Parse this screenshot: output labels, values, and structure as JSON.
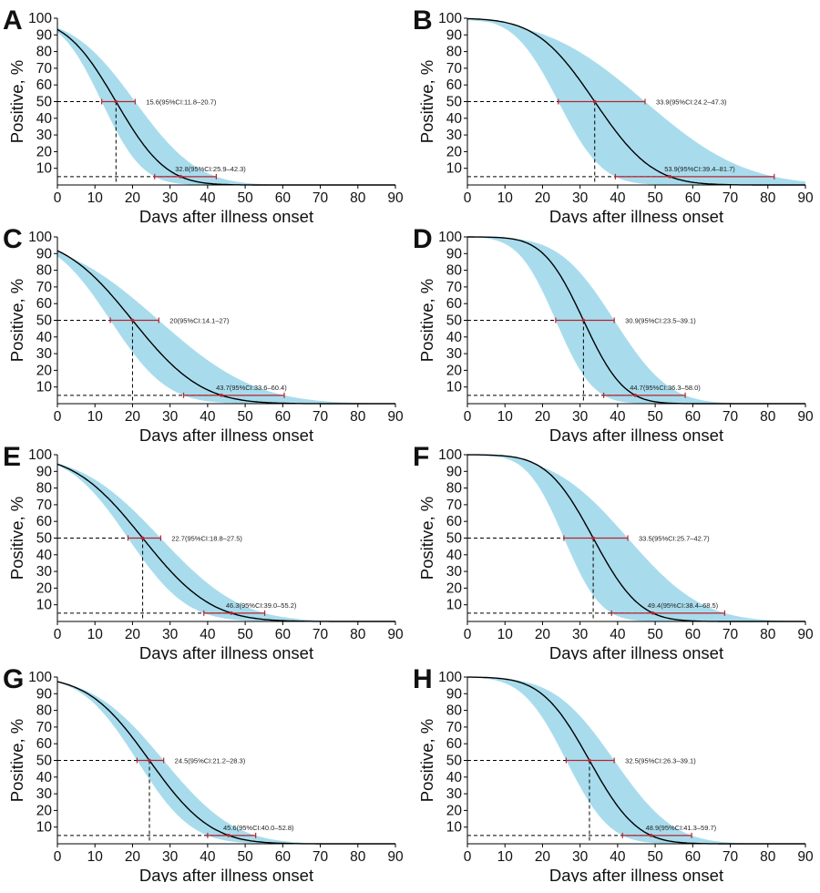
{
  "colors": {
    "band": "#a8dced",
    "curve": "#000000",
    "ci": "#b5252f",
    "guide": "#000000",
    "axis": "#000000"
  },
  "chart_data": [
    {
      "panel": "A",
      "type": "line",
      "xlabel": "Days after illness onset",
      "ylabel": "Positive, %",
      "xlim": [
        0,
        90
      ],
      "ylim": [
        0,
        100
      ],
      "xticks": [
        "0",
        "10",
        "20",
        "30",
        "40",
        "50",
        "60",
        "70",
        "80",
        "90"
      ],
      "yticks": [
        "10",
        "20",
        "30",
        "40",
        "50",
        "60",
        "70",
        "80",
        "90",
        "100"
      ],
      "median": {
        "x": 15.6,
        "lo": 11.8,
        "hi": 20.7,
        "label": "15.6(95%CI:11.8–20.7)"
      },
      "p95": {
        "x": 32.8,
        "lo": 25.9,
        "hi": 42.3,
        "label": "32.8(95%CI:25.9–42.3)"
      }
    },
    {
      "panel": "B",
      "type": "line",
      "xlabel": "Days after illness onset",
      "ylabel": "Positive, %",
      "xlim": [
        0,
        90
      ],
      "ylim": [
        0,
        100
      ],
      "xticks": [
        "0",
        "10",
        "20",
        "30",
        "40",
        "50",
        "60",
        "70",
        "80",
        "90"
      ],
      "yticks": [
        "10",
        "20",
        "30",
        "40",
        "50",
        "60",
        "70",
        "80",
        "90",
        "100"
      ],
      "median": {
        "x": 33.9,
        "lo": 24.2,
        "hi": 47.3,
        "label": "33.9(95%CI:24.2–47.3)"
      },
      "p95": {
        "x": 53.9,
        "lo": 39.4,
        "hi": 81.7,
        "label": "53.9(95%CI:39.4–81.7)"
      }
    },
    {
      "panel": "C",
      "type": "line",
      "xlabel": "Days after illness onset",
      "ylabel": "Positive, %",
      "xlim": [
        0,
        90
      ],
      "ylim": [
        0,
        100
      ],
      "xticks": [
        "0",
        "10",
        "20",
        "30",
        "40",
        "50",
        "60",
        "70",
        "80",
        "90"
      ],
      "yticks": [
        "10",
        "20",
        "30",
        "40",
        "50",
        "60",
        "70",
        "80",
        "90",
        "100"
      ],
      "median": {
        "x": 20.0,
        "lo": 14.1,
        "hi": 27.0,
        "label": "20(95%CI:14.1–27)"
      },
      "p95": {
        "x": 43.7,
        "lo": 33.6,
        "hi": 60.4,
        "label": "43.7(95%CI:33.6–60.4)"
      }
    },
    {
      "panel": "D",
      "type": "line",
      "xlabel": "Days after illness onset",
      "ylabel": "Positive, %",
      "xlim": [
        0,
        90
      ],
      "ylim": [
        0,
        100
      ],
      "xticks": [
        "0",
        "10",
        "20",
        "30",
        "40",
        "50",
        "60",
        "70",
        "80",
        "90"
      ],
      "yticks": [
        "10",
        "20",
        "30",
        "40",
        "50",
        "60",
        "70",
        "80",
        "90",
        "100"
      ],
      "median": {
        "x": 30.9,
        "lo": 23.5,
        "hi": 39.1,
        "label": "30.9(95%CI:23.5–39.1)"
      },
      "p95": {
        "x": 44.7,
        "lo": 36.3,
        "hi": 58.0,
        "label": "44.7(95%CI:36.3–58.0)"
      }
    },
    {
      "panel": "E",
      "type": "line",
      "xlabel": "Days after illness onset",
      "ylabel": "Positive, %",
      "xlim": [
        0,
        90
      ],
      "ylim": [
        0,
        100
      ],
      "xticks": [
        "0",
        "10",
        "20",
        "30",
        "40",
        "50",
        "60",
        "70",
        "80",
        "90"
      ],
      "yticks": [
        "10",
        "20",
        "30",
        "40",
        "50",
        "60",
        "70",
        "80",
        "90",
        "100"
      ],
      "median": {
        "x": 22.7,
        "lo": 18.8,
        "hi": 27.5,
        "label": "22.7(95%CI:18.8–27.5)"
      },
      "p95": {
        "x": 46.3,
        "lo": 39.0,
        "hi": 55.2,
        "label": "46.3(95%CI:39.0–55.2)"
      }
    },
    {
      "panel": "F",
      "type": "line",
      "xlabel": "Days after illness onset",
      "ylabel": "Positive, %",
      "xlim": [
        0,
        90
      ],
      "ylim": [
        0,
        100
      ],
      "xticks": [
        "0",
        "10",
        "20",
        "30",
        "40",
        "50",
        "60",
        "70",
        "80",
        "90"
      ],
      "yticks": [
        "10",
        "20",
        "30",
        "40",
        "50",
        "60",
        "70",
        "80",
        "90",
        "100"
      ],
      "median": {
        "x": 33.5,
        "lo": 25.7,
        "hi": 42.7,
        "label": "33.5(95%CI:25.7–42.7)"
      },
      "p95": {
        "x": 49.4,
        "lo": 38.4,
        "hi": 68.5,
        "label": "49.4(95%CI:38.4–68.5)"
      }
    },
    {
      "panel": "G",
      "type": "line",
      "xlabel": "Days after illness onset",
      "ylabel": "Positive, %",
      "xlim": [
        0,
        90
      ],
      "ylim": [
        0,
        100
      ],
      "xticks": [
        "0",
        "10",
        "20",
        "30",
        "40",
        "50",
        "60",
        "70",
        "80",
        "90"
      ],
      "yticks": [
        "10",
        "20",
        "30",
        "40",
        "50",
        "60",
        "70",
        "80",
        "90",
        "100"
      ],
      "median": {
        "x": 24.5,
        "lo": 21.2,
        "hi": 28.3,
        "label": "24.5(95%CI:21.2–28.3)"
      },
      "p95": {
        "x": 45.6,
        "lo": 40.0,
        "hi": 52.8,
        "label": "45.6(95%CI:40.0–52.8)"
      }
    },
    {
      "panel": "H",
      "type": "line",
      "xlabel": "Days after illness onset",
      "ylabel": "Positive, %",
      "xlim": [
        0,
        90
      ],
      "ylim": [
        0,
        100
      ],
      "xticks": [
        "0",
        "10",
        "20",
        "30",
        "40",
        "50",
        "60",
        "70",
        "80",
        "90"
      ],
      "yticks": [
        "10",
        "20",
        "30",
        "40",
        "50",
        "60",
        "70",
        "80",
        "90",
        "100"
      ],
      "median": {
        "x": 32.5,
        "lo": 26.3,
        "hi": 39.1,
        "label": "32.5(95%CI:26.3–39.1)"
      },
      "p95": {
        "x": 48.9,
        "lo": 41.3,
        "hi": 59.7,
        "label": "48.9(95%CI:41.3–59.7)"
      }
    }
  ]
}
